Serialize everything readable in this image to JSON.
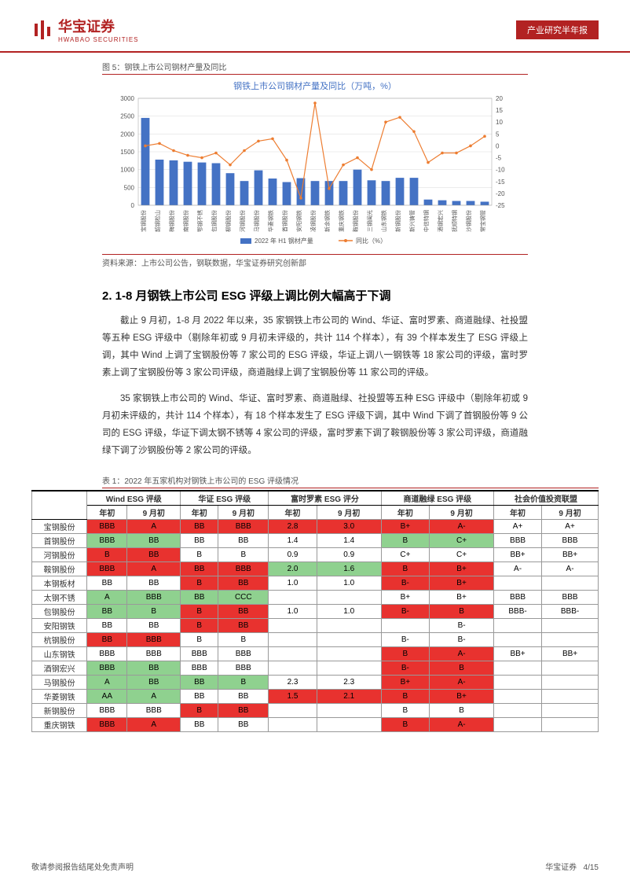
{
  "header": {
    "logo_cn": "华宝证券",
    "logo_en": "HWABAO SECURITIES",
    "logo_color": "#b22222",
    "badge": "产业研究半年报",
    "badge_bg": "#b22222"
  },
  "figure": {
    "caption": "图 5：钢铁上市公司钢材产量及同比",
    "title": "钢铁上市公司钢材产量及同比（万吨，%）",
    "title_fontsize": 11,
    "title_color": "#4472c4",
    "source": "资料来源：上市公司公告，钢联数据，华宝证券研究创新部",
    "type": "combo-bar-line",
    "categories": [
      "宝钢股份",
      "韶钢松山",
      "梅钢股份",
      "南钢股份",
      "鄂钢不锈",
      "包钢股份",
      "柳钢股份",
      "河钢股份",
      "马钢股份",
      "华菱钢铁",
      "首钢股份",
      "安阳钢铁",
      "凌钢股份",
      "新余钢铁",
      "重庆钢铁",
      "鞍钢股份",
      "三钢闽光",
      "山东钢铁",
      "新钢股份",
      "新兴铸管",
      "中信特钢",
      "酒钢宏兴",
      "抚顺特钢",
      "沙钢股份",
      "常宝钢管"
    ],
    "bar_values": [
      2450,
      1280,
      1260,
      1220,
      1200,
      1180,
      900,
      680,
      980,
      750,
      650,
      760,
      680,
      680,
      680,
      1000,
      700,
      680,
      770,
      770,
      160,
      140,
      120,
      120,
      100
    ],
    "line_values": [
      0,
      1,
      -2,
      -4,
      -5,
      -3,
      -8,
      -2,
      2,
      3,
      -6,
      -22,
      18,
      -18,
      -8,
      -5,
      -10,
      10,
      12,
      6,
      -7,
      -3,
      -3,
      0,
      4
    ],
    "bar_color": "#4472c4",
    "line_color": "#ed7d31",
    "y1_lim": [
      0,
      3000
    ],
    "y1_step": 500,
    "y2_lim": [
      -25,
      20
    ],
    "y2_step": 5,
    "grid_color": "#d9d9d9",
    "legend": {
      "bar": "2022 年 H1 钢材产量",
      "line": "同比（%）"
    }
  },
  "section": {
    "title": "2. 1-8 月钢铁上市公司 ESG 评级上调比例大幅高于下调",
    "para1": "截止 9 月初，1-8 月 2022 年以来，35 家钢铁上市公司的 Wind、华证、富时罗素、商道融绿、社投盟等五种 ESG 评级中（剔除年初或 9 月初未评级的，共计 114 个样本），有 39 个样本发生了 ESG 评级上调，其中 Wind 上调了宝钢股份等 7 家公司的 ESG 评级，华证上调八一钢铁等 18 家公司的评级，富时罗素上调了宝钢股份等 3 家公司评级，商道融绿上调了宝钢股份等 11 家公司的评级。",
    "para2": "35 家钢铁上市公司的 Wind、华证、富时罗素、商道融绿、社投盟等五种 ESG 评级中（剔除年初或 9 月初未评级的，共计 114 个样本），有 18 个样本发生了 ESG 评级下调，其中 Wind 下调了首钢股份等 9 公司的 ESG 评级，华证下调太钢不锈等 4 家公司的评级，富时罗素下调了鞍钢股份等 3 家公司评级，商道融绿下调了沙钢股份等 2 家公司的评级。"
  },
  "table": {
    "caption": "表 1：2022 年五家机构对钢铁上市公司的 ESG 评级情况",
    "groups": [
      "Wind ESG 评级",
      "华证 ESG 评级",
      "富时罗素 ESG 评分",
      "商道融绿 ESG 评级",
      "社会价值投资联盟"
    ],
    "sub_headers": [
      "年初",
      "9 月初"
    ],
    "colors": {
      "up": "#e8322f",
      "down": "#8fd18f",
      "flat": "#ffffff"
    },
    "rows": [
      {
        "n": "宝钢股份",
        "c": [
          [
            "BBB",
            "r"
          ],
          [
            "A",
            "r"
          ],
          [
            "BB",
            "r"
          ],
          [
            "BBB",
            "r"
          ],
          [
            "2.8",
            "r"
          ],
          [
            "3.0",
            "r"
          ],
          [
            "B+",
            "r"
          ],
          [
            "A-",
            "r"
          ],
          [
            "A+",
            "w"
          ],
          [
            "A+",
            "w"
          ]
        ]
      },
      {
        "n": "首钢股份",
        "c": [
          [
            "BBB",
            "g"
          ],
          [
            "BB",
            "g"
          ],
          [
            "BB",
            "w"
          ],
          [
            "BB",
            "w"
          ],
          [
            "1.4",
            "w"
          ],
          [
            "1.4",
            "w"
          ],
          [
            "B",
            "g"
          ],
          [
            "C+",
            "g"
          ],
          [
            "BBB",
            "w"
          ],
          [
            "BBB",
            "w"
          ]
        ]
      },
      {
        "n": "河钢股份",
        "c": [
          [
            "B",
            "r"
          ],
          [
            "BB",
            "r"
          ],
          [
            "B",
            "w"
          ],
          [
            "B",
            "w"
          ],
          [
            "0.9",
            "w"
          ],
          [
            "0.9",
            "w"
          ],
          [
            "C+",
            "w"
          ],
          [
            "C+",
            "w"
          ],
          [
            "BB+",
            "w"
          ],
          [
            "BB+",
            "w"
          ]
        ]
      },
      {
        "n": "鞍钢股份",
        "c": [
          [
            "BBB",
            "r"
          ],
          [
            "A",
            "r"
          ],
          [
            "BB",
            "r"
          ],
          [
            "BBB",
            "r"
          ],
          [
            "2.0",
            "g"
          ],
          [
            "1.6",
            "g"
          ],
          [
            "B",
            "r"
          ],
          [
            "B+",
            "r"
          ],
          [
            "A-",
            "w"
          ],
          [
            "A-",
            "w"
          ]
        ]
      },
      {
        "n": "本钢板材",
        "c": [
          [
            "BB",
            "w"
          ],
          [
            "BB",
            "w"
          ],
          [
            "B",
            "r"
          ],
          [
            "BB",
            "r"
          ],
          [
            "1.0",
            "w"
          ],
          [
            "1.0",
            "w"
          ],
          [
            "B-",
            "r"
          ],
          [
            "B+",
            "r"
          ],
          [
            "",
            "w"
          ],
          [
            "",
            "w"
          ]
        ]
      },
      {
        "n": "太钢不锈",
        "c": [
          [
            "A",
            "g"
          ],
          [
            "BBB",
            "g"
          ],
          [
            "BB",
            "g"
          ],
          [
            "CCC",
            "g"
          ],
          [
            "",
            "w"
          ],
          [
            "",
            "w"
          ],
          [
            "B+",
            "w"
          ],
          [
            "B+",
            "w"
          ],
          [
            "BBB",
            "w"
          ],
          [
            "BBB",
            "w"
          ]
        ]
      },
      {
        "n": "包钢股份",
        "c": [
          [
            "BB",
            "g"
          ],
          [
            "B",
            "g"
          ],
          [
            "B",
            "r"
          ],
          [
            "BB",
            "r"
          ],
          [
            "1.0",
            "w"
          ],
          [
            "1.0",
            "w"
          ],
          [
            "B-",
            "r"
          ],
          [
            "B",
            "r"
          ],
          [
            "BBB-",
            "w"
          ],
          [
            "BBB-",
            "w"
          ]
        ]
      },
      {
        "n": "安阳钢铁",
        "c": [
          [
            "BB",
            "w"
          ],
          [
            "BB",
            "w"
          ],
          [
            "B",
            "r"
          ],
          [
            "BB",
            "r"
          ],
          [
            "",
            "w"
          ],
          [
            "",
            "w"
          ],
          [
            "",
            "w"
          ],
          [
            "B-",
            "w"
          ],
          [
            "",
            "w"
          ],
          [
            "",
            "w"
          ]
        ]
      },
      {
        "n": "杭钢股份",
        "c": [
          [
            "BB",
            "r"
          ],
          [
            "BBB",
            "r"
          ],
          [
            "B",
            "w"
          ],
          [
            "B",
            "w"
          ],
          [
            "",
            "w"
          ],
          [
            "",
            "w"
          ],
          [
            "B-",
            "w"
          ],
          [
            "B-",
            "w"
          ],
          [
            "",
            "w"
          ],
          [
            "",
            "w"
          ]
        ]
      },
      {
        "n": "山东钢铁",
        "c": [
          [
            "BBB",
            "w"
          ],
          [
            "BBB",
            "w"
          ],
          [
            "BBB",
            "w"
          ],
          [
            "BBB",
            "w"
          ],
          [
            "",
            "w"
          ],
          [
            "",
            "w"
          ],
          [
            "B",
            "r"
          ],
          [
            "A-",
            "r"
          ],
          [
            "BB+",
            "w"
          ],
          [
            "BB+",
            "w"
          ]
        ]
      },
      {
        "n": "酒钢宏兴",
        "c": [
          [
            "BBB",
            "g"
          ],
          [
            "BB",
            "g"
          ],
          [
            "BBB",
            "w"
          ],
          [
            "BBB",
            "w"
          ],
          [
            "",
            "w"
          ],
          [
            "",
            "w"
          ],
          [
            "B-",
            "r"
          ],
          [
            "B",
            "r"
          ],
          [
            "",
            "w"
          ],
          [
            "",
            "w"
          ]
        ]
      },
      {
        "n": "马钢股份",
        "c": [
          [
            "A",
            "g"
          ],
          [
            "BB",
            "g"
          ],
          [
            "BB",
            "g"
          ],
          [
            "B",
            "g"
          ],
          [
            "2.3",
            "w"
          ],
          [
            "2.3",
            "w"
          ],
          [
            "B+",
            "r"
          ],
          [
            "A-",
            "r"
          ],
          [
            "",
            "w"
          ],
          [
            "",
            "w"
          ]
        ]
      },
      {
        "n": "华菱钢铁",
        "c": [
          [
            "AA",
            "g"
          ],
          [
            "A",
            "g"
          ],
          [
            "BB",
            "w"
          ],
          [
            "BB",
            "w"
          ],
          [
            "1.5",
            "r"
          ],
          [
            "2.1",
            "r"
          ],
          [
            "B",
            "r"
          ],
          [
            "B+",
            "r"
          ],
          [
            "",
            "w"
          ],
          [
            "",
            "w"
          ]
        ]
      },
      {
        "n": "新钢股份",
        "c": [
          [
            "BBB",
            "w"
          ],
          [
            "BBB",
            "w"
          ],
          [
            "B",
            "r"
          ],
          [
            "BB",
            "r"
          ],
          [
            "",
            "w"
          ],
          [
            "",
            "w"
          ],
          [
            "B",
            "w"
          ],
          [
            "B",
            "w"
          ],
          [
            "",
            "w"
          ],
          [
            "",
            "w"
          ]
        ]
      },
      {
        "n": "重庆钢铁",
        "c": [
          [
            "BBB",
            "r"
          ],
          [
            "A",
            "r"
          ],
          [
            "BB",
            "w"
          ],
          [
            "BB",
            "w"
          ],
          [
            "",
            "w"
          ],
          [
            "",
            "w"
          ],
          [
            "B",
            "r"
          ],
          [
            "A-",
            "r"
          ],
          [
            "",
            "w"
          ],
          [
            "",
            "w"
          ]
        ]
      }
    ]
  },
  "footer": {
    "left": "敬请参阅报告结尾处免责声明",
    "right_company": "华宝证券",
    "right_page": "4/15"
  }
}
